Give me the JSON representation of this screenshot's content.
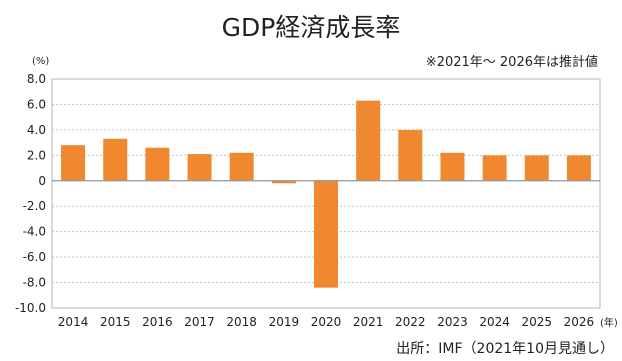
{
  "chart_data": {
    "type": "bar",
    "title": "GDP経済成長率",
    "subtitle": "※2021年～ 2026年は推計値",
    "ylabel": "(%)",
    "xlabel": "(年)",
    "source": "出所：IMF（2021年10月見通し）",
    "categories": [
      "2014",
      "2015",
      "2016",
      "2017",
      "2018",
      "2019",
      "2020",
      "2021",
      "2022",
      "2023",
      "2024",
      "2025",
      "2026"
    ],
    "values": [
      2.8,
      3.3,
      2.6,
      2.1,
      2.2,
      -0.2,
      -8.4,
      6.3,
      4.0,
      2.2,
      2.0,
      2.0,
      2.0
    ],
    "ylim": [
      -10.0,
      8.0
    ],
    "yticks": [
      8.0,
      6.0,
      4.0,
      2.0,
      0,
      -2.0,
      -4.0,
      -6.0,
      -8.0,
      -10.0
    ],
    "ytick_labels": [
      "8.0",
      "6.0",
      "4.0",
      "2.0",
      "0",
      "-2.0",
      "-4.0",
      "-6.0",
      "-8.0",
      "-10.0"
    ],
    "grid": true,
    "bar_color": "#f0882f"
  }
}
